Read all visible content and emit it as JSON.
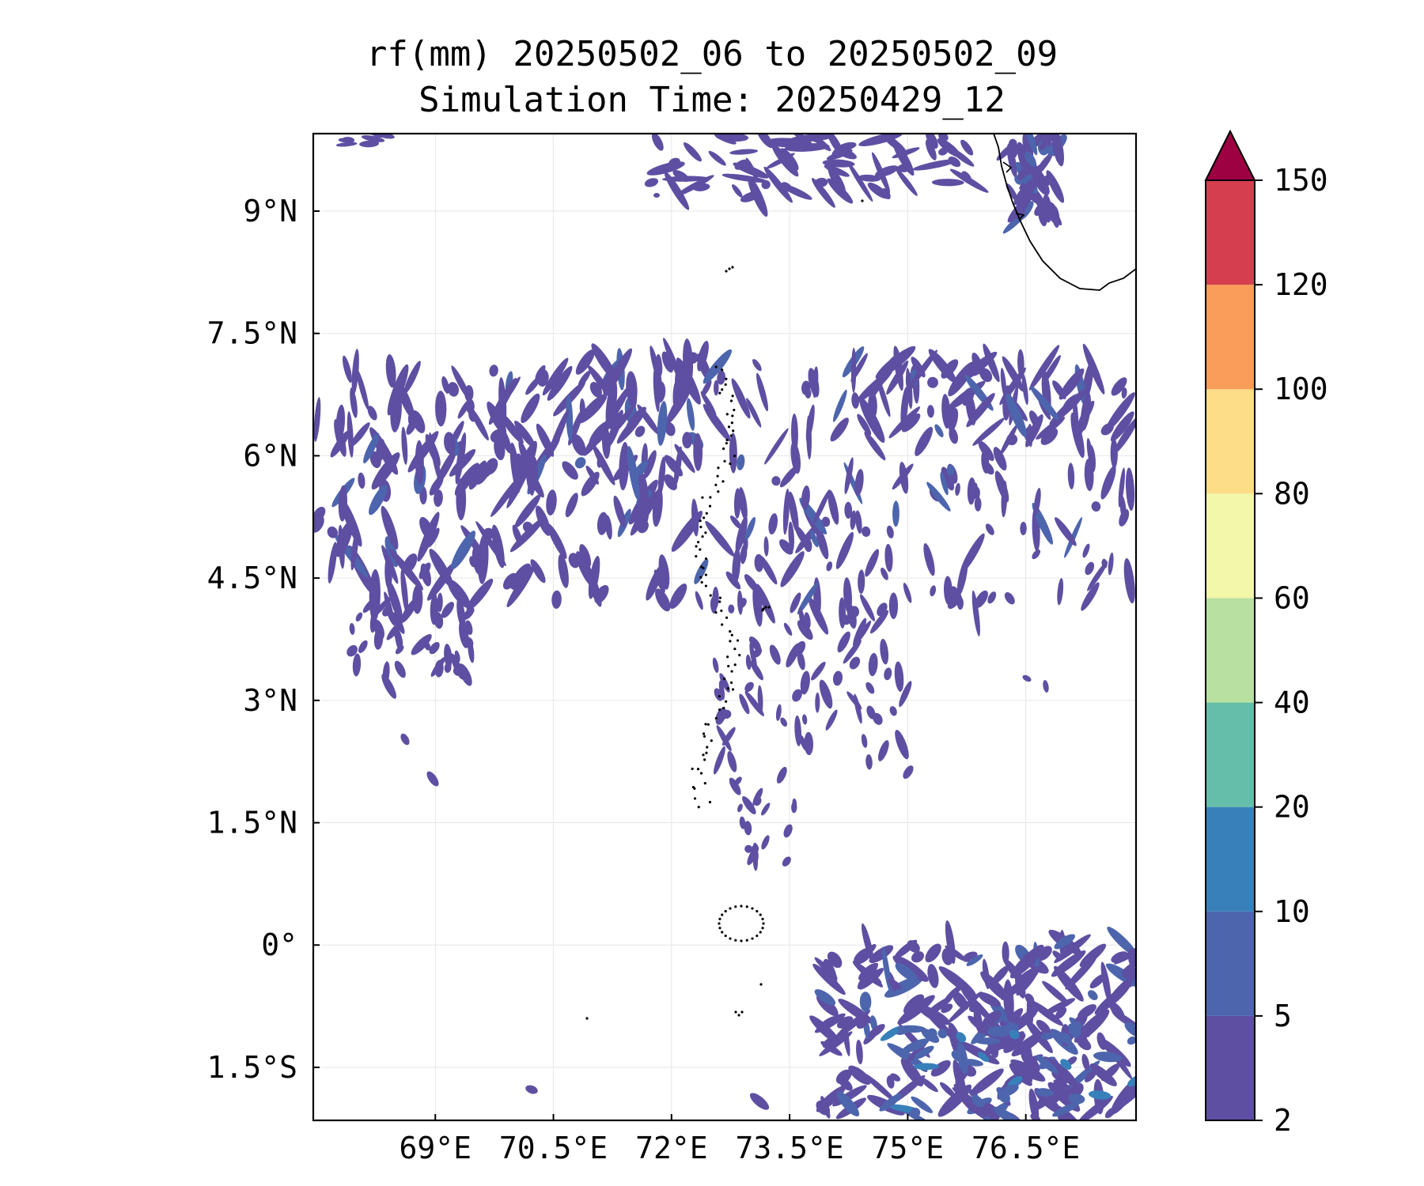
{
  "title_line1": "rf(mm) 20250502_06 to 20250502_09",
  "title_line2": "Simulation Time: 20250429_12",
  "map": {
    "lon_range": [
      67.45,
      77.9
    ],
    "lat_range": [
      -2.15,
      9.95
    ],
    "x_ticks": [
      {
        "value": 69,
        "label": "69°E"
      },
      {
        "value": 70.5,
        "label": "70.5°E"
      },
      {
        "value": 72,
        "label": "72°E"
      },
      {
        "value": 73.5,
        "label": "73.5°E"
      },
      {
        "value": 75,
        "label": "75°E"
      },
      {
        "value": 76.5,
        "label": "76.5°E"
      }
    ],
    "y_ticks": [
      {
        "value": 9,
        "label": "9°N"
      },
      {
        "value": 7.5,
        "label": "7.5°N"
      },
      {
        "value": 6,
        "label": "6°N"
      },
      {
        "value": 4.5,
        "label": "4.5°N"
      },
      {
        "value": 3,
        "label": "3°N"
      },
      {
        "value": 1.5,
        "label": "1.5°N"
      },
      {
        "value": 0,
        "label": "0°"
      },
      {
        "value": -1.5,
        "label": "1.5°S"
      }
    ],
    "grid": true
  },
  "colorbar": {
    "levels": [
      {
        "value": 2,
        "label": "2"
      },
      {
        "value": 5,
        "label": "5"
      },
      {
        "value": 10,
        "label": "10"
      },
      {
        "value": 20,
        "label": "20"
      },
      {
        "value": 40,
        "label": "40"
      },
      {
        "value": 60,
        "label": "60"
      },
      {
        "value": 80,
        "label": "80"
      },
      {
        "value": 100,
        "label": "100"
      },
      {
        "value": 120,
        "label": "120"
      },
      {
        "value": 150,
        "label": "150"
      }
    ],
    "colors": [
      "#5e4fa2",
      "#4d65ad",
      "#3880b9",
      "#64bea9",
      "#b8e0a0",
      "#f2f7aa",
      "#fddd87",
      "#fa9c5a",
      "#d53e4f"
    ],
    "extend_color": "#9e0142"
  }
}
